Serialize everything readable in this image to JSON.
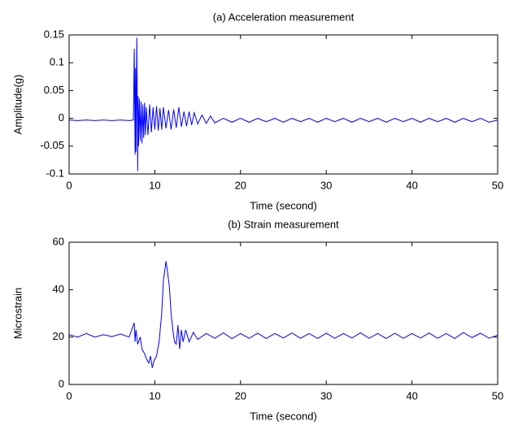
{
  "chart_data": [
    {
      "type": "line",
      "title": "(a) Acceleration measurement",
      "xlabel": "Time (second)",
      "ylabel": "Amplitude(g)",
      "color": "#0000ff",
      "x": [
        0,
        1,
        2,
        3,
        4,
        5,
        6,
        7,
        7.5,
        7.6,
        7.7,
        7.75,
        7.8,
        7.9,
        8.0,
        8.05,
        8.1,
        8.2,
        8.3,
        8.4,
        8.5,
        8.6,
        8.7,
        8.8,
        8.9,
        9.0,
        9.2,
        9.4,
        9.6,
        9.8,
        10,
        10.2,
        10.4,
        10.6,
        10.8,
        11,
        11.3,
        11.6,
        11.9,
        12.2,
        12.5,
        12.8,
        13.1,
        13.4,
        13.7,
        14,
        14.3,
        14.6,
        15,
        15.5,
        16,
        16.5,
        17,
        18,
        19,
        20,
        21,
        22,
        23,
        24,
        25,
        26,
        27,
        28,
        29,
        30,
        31,
        32,
        33,
        34,
        35,
        36,
        37,
        38,
        39,
        40,
        41,
        42,
        43,
        44,
        45,
        46,
        47,
        48,
        49,
        50
      ],
      "values": [
        -0.003,
        -0.004,
        -0.003,
        -0.004,
        -0.003,
        -0.004,
        -0.003,
        -0.004,
        -0.003,
        0.125,
        -0.065,
        0.09,
        -0.06,
        0.145,
        -0.095,
        0.04,
        -0.05,
        0.035,
        -0.04,
        0.03,
        -0.045,
        0.025,
        -0.035,
        0.028,
        -0.03,
        0.02,
        -0.03,
        0.025,
        -0.025,
        0.02,
        -0.02,
        0.022,
        -0.022,
        0.018,
        -0.02,
        0.02,
        -0.018,
        0.015,
        -0.02,
        0.016,
        -0.017,
        0.02,
        -0.015,
        0.012,
        -0.014,
        0.012,
        -0.012,
        0.01,
        -0.01,
        0.006,
        -0.009,
        0.004,
        -0.008,
        0,
        -0.007,
        0,
        -0.007,
        0,
        -0.006,
        0,
        -0.007,
        0,
        -0.006,
        0,
        -0.007,
        0,
        -0.006,
        0,
        -0.007,
        0,
        -0.006,
        0,
        -0.007,
        0,
        -0.006,
        0,
        -0.007,
        0,
        -0.006,
        0,
        -0.007,
        0,
        -0.006,
        0,
        -0.007,
        -0.003
      ],
      "xlim": [
        0,
        50
      ],
      "xticks": [
        0,
        10,
        20,
        30,
        40,
        50
      ],
      "ylim": [
        -0.1,
        0.15
      ],
      "yticks": [
        -0.1,
        -0.05,
        0,
        0.05,
        0.1,
        0.15
      ]
    },
    {
      "type": "line",
      "title": "(b) Strain measurement",
      "xlabel": "Time (second)",
      "ylabel": "Microstrain",
      "color": "#0000ff",
      "x": [
        0,
        1,
        2,
        3,
        4,
        5,
        6,
        7,
        7.6,
        7.7,
        7.8,
        8.0,
        8.3,
        8.5,
        8.8,
        9.0,
        9.3,
        9.5,
        9.7,
        9.9,
        10.2,
        10.5,
        10.8,
        11.0,
        11.2,
        11.3,
        11.5,
        11.7,
        11.9,
        12.1,
        12.3,
        12.5,
        12.7,
        12.9,
        13.1,
        13.3,
        13.6,
        14,
        14.5,
        15,
        16,
        17,
        18,
        19,
        20,
        21,
        22,
        23,
        24,
        25,
        26,
        27,
        28,
        29,
        30,
        31,
        32,
        33,
        34,
        35,
        36,
        37,
        38,
        39,
        40,
        41,
        42,
        43,
        44,
        45,
        46,
        47,
        48,
        49,
        50
      ],
      "values": [
        21,
        20,
        21.5,
        20,
        21,
        20.2,
        21.3,
        20,
        26,
        18,
        23,
        17,
        20,
        15,
        13,
        11,
        9,
        12,
        7,
        10,
        12,
        18,
        30,
        44,
        49,
        52,
        47,
        41,
        30,
        23,
        18,
        17,
        25,
        15,
        23,
        18,
        23,
        18,
        22,
        19,
        21.5,
        19.5,
        21.8,
        19.3,
        21.5,
        19.5,
        21.6,
        19.4,
        21.5,
        19.6,
        21.7,
        19.5,
        21.5,
        19.4,
        21.6,
        19.5,
        21.5,
        19.6,
        21.8,
        19.5,
        21.5,
        19.4,
        21.6,
        19.5,
        21.5,
        19.6,
        21.7,
        19.5,
        21.5,
        19.4,
        21.9,
        19.8,
        21.6,
        19.5,
        20.8
      ],
      "xlim": [
        0,
        50
      ],
      "xticks": [
        0,
        10,
        20,
        30,
        40,
        50
      ],
      "ylim": [
        0,
        60
      ],
      "yticks": [
        0,
        20,
        40,
        60
      ]
    }
  ]
}
